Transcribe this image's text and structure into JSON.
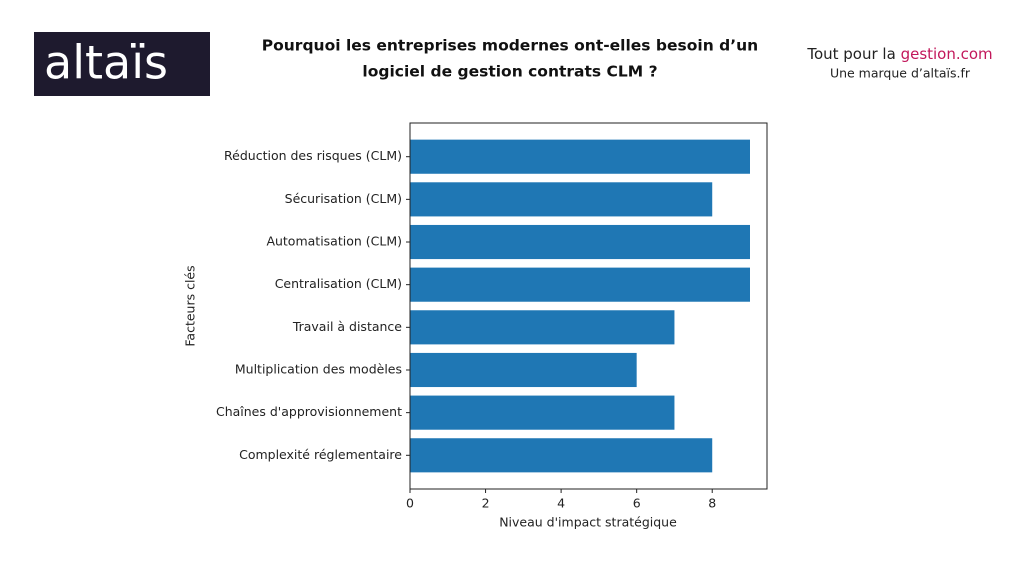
{
  "header": {
    "logo": "altaïs",
    "title": [
      "Pourquoi les entreprises modernes ont-elles besoin d’un",
      "logiciel de gestion contrats CLM ?"
    ],
    "brand_prefix": "Tout pour la",
    "brand_highlight": "gestion.com",
    "brand_tagline": "Une marque d’altaïs.fr"
  },
  "chart_data": {
    "type": "barh",
    "xlabel": "Niveau d'impact stratégique",
    "ylabel": "Facteurs clés",
    "categories": [
      "Réduction des risques (CLM)",
      "Sécurisation (CLM)",
      "Automatisation (CLM)",
      "Centralisation (CLM)",
      "Travail à distance",
      "Multiplication des modèles",
      "Chaînes d'approvisionnement",
      "Complexité réglementaire"
    ],
    "values": [
      9,
      8,
      9,
      9,
      7,
      6,
      7,
      8
    ],
    "color": "#1f77b4",
    "xlim": [
      0,
      9.45
    ],
    "xticks": [
      0,
      2,
      4,
      6,
      8
    ],
    "grid": false
  }
}
